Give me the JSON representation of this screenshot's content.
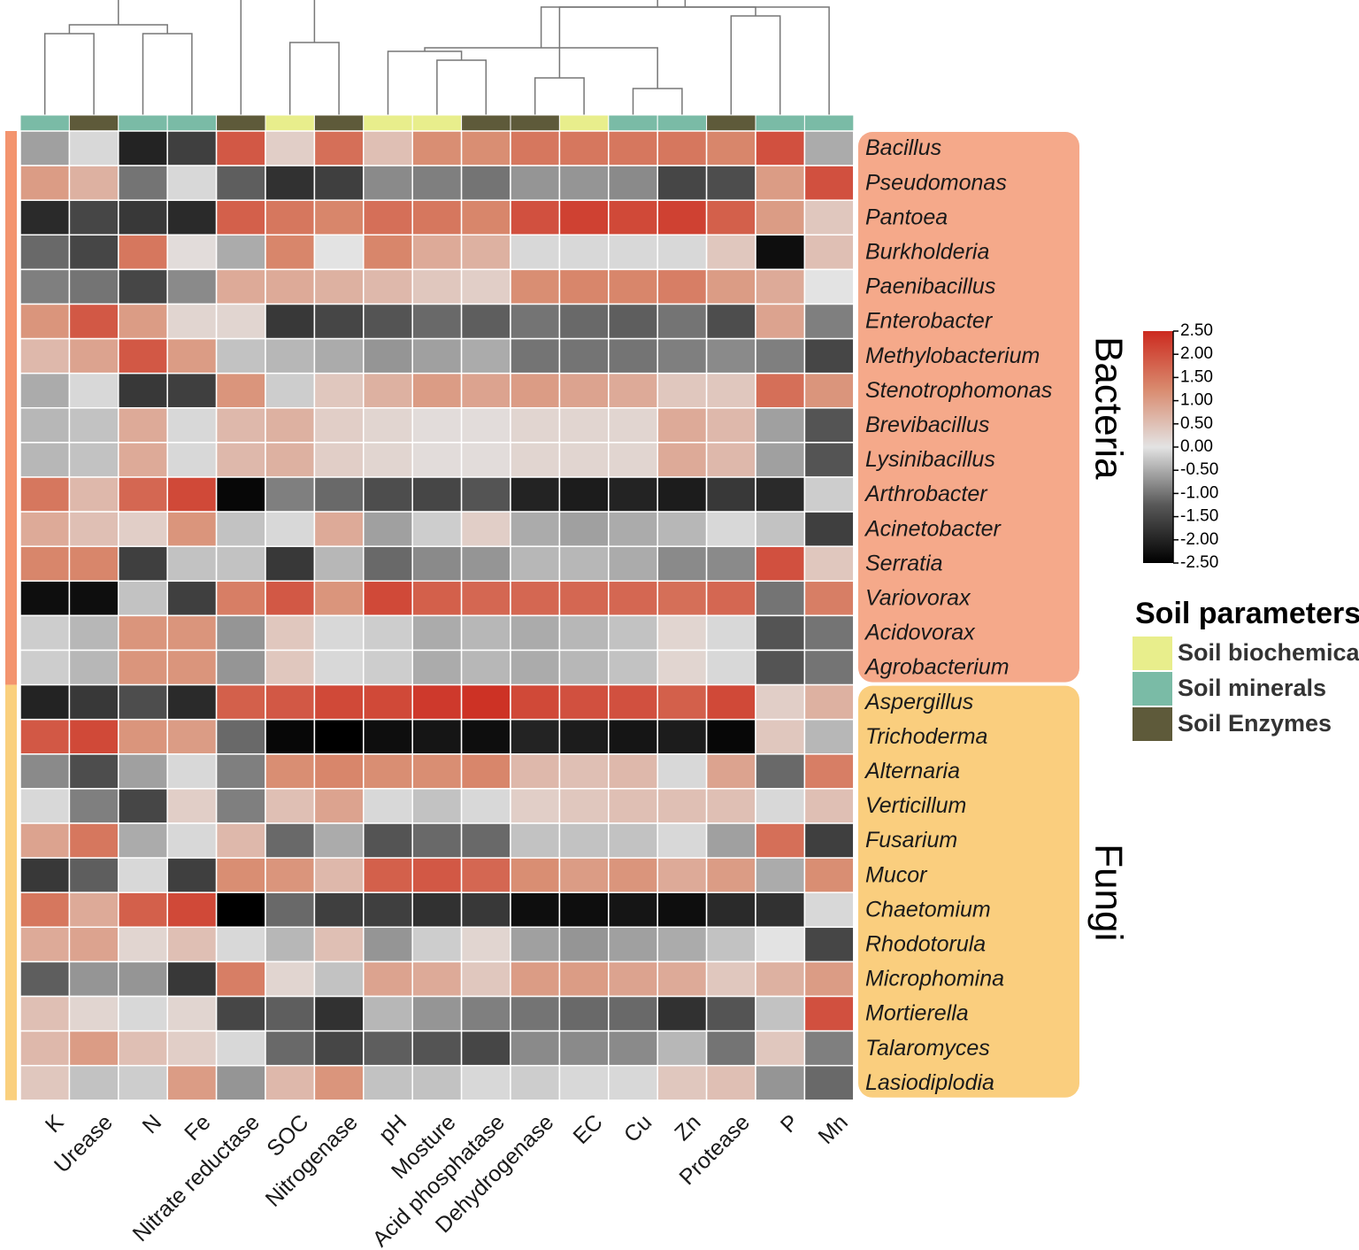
{
  "chart_data": {
    "type": "heatmap",
    "title": "",
    "columns": [
      "K",
      "Urease",
      "N",
      "Fe",
      "Nitrate reductase",
      "SOC",
      "Nitrogenase",
      "pH",
      "Mosture",
      "Acid phosphatase",
      "Dehydrogenase",
      "EC",
      "Cu",
      "Zn",
      "Protease",
      "P",
      "Mn"
    ],
    "column_categories": [
      "Soil minerals",
      "Soil Enzymes",
      "Soil minerals",
      "Soil minerals",
      "Soil Enzymes",
      "Soil biochemical",
      "Soil Enzymes",
      "Soil biochemical",
      "Soil biochemical",
      "Soil Enzymes",
      "Soil Enzymes",
      "Soil biochemical",
      "Soil minerals",
      "Soil minerals",
      "Soil Enzymes",
      "Soil minerals",
      "Soil minerals"
    ],
    "row_groups": [
      {
        "name": "Bacteria",
        "color": "#F5A98A",
        "bar_color": "#F3946E",
        "rows": [
          "Bacillus",
          "Pseudomonas",
          "Pantoea",
          "Burkholderia",
          "Paenibacillus",
          "Enterobacter",
          "Methylobacterium",
          "Stenotrophomonas",
          "Brevibacillus",
          "Lysinibacillus",
          "Arthrobacter",
          "Acinetobacter",
          "Serratia",
          "Variovorax",
          "Acidovorax",
          "Agrobacterium"
        ]
      },
      {
        "name": "Fungi",
        "color": "#FACE7E",
        "bar_color": "#FAD07E",
        "rows": [
          "Aspergillus",
          "Trichoderma",
          "Alternaria",
          "Verticillum",
          "Fusarium",
          "Mucor",
          "Chaetomium",
          "Rhodotorula",
          "Microphomina",
          "Mortierella",
          "Talaromyces",
          "Lasiodiplodia"
        ]
      }
    ],
    "values": [
      [
        -0.6,
        -0.1,
        -2.0,
        -1.6,
        1.9,
        0.3,
        1.6,
        0.5,
        1.2,
        1.2,
        1.5,
        1.5,
        1.5,
        1.5,
        1.3,
        2.0,
        -0.5
      ],
      [
        1.0,
        0.7,
        -1.0,
        -0.1,
        -1.2,
        -1.8,
        -1.6,
        -0.8,
        -0.9,
        -1.0,
        -0.7,
        -0.7,
        -0.8,
        -1.5,
        -1.4,
        1.0,
        2.0
      ],
      [
        -1.9,
        -1.5,
        -1.7,
        -1.9,
        1.8,
        1.5,
        1.3,
        1.6,
        1.5,
        1.3,
        2.0,
        2.2,
        2.1,
        2.2,
        1.8,
        1.0,
        0.4
      ],
      [
        -1.1,
        -1.5,
        1.5,
        0.1,
        -0.5,
        1.3,
        0.0,
        1.3,
        0.8,
        0.7,
        -0.1,
        -0.1,
        -0.1,
        -0.1,
        0.4,
        -2.3,
        0.5
      ],
      [
        -0.9,
        -1.0,
        -1.5,
        -0.8,
        0.8,
        0.8,
        0.7,
        0.6,
        0.4,
        0.3,
        1.2,
        1.3,
        1.3,
        1.4,
        1.0,
        0.8,
        0.0
      ],
      [
        1.1,
        1.9,
        1.0,
        0.2,
        0.2,
        -1.7,
        -1.5,
        -1.3,
        -1.1,
        -1.2,
        -1.0,
        -1.1,
        -1.2,
        -1.0,
        -1.4,
        0.9,
        -0.9
      ],
      [
        0.6,
        0.9,
        1.9,
        1.0,
        -0.3,
        -0.4,
        -0.5,
        -0.7,
        -0.6,
        -0.5,
        -1.0,
        -1.0,
        -1.0,
        -0.9,
        -0.8,
        -0.9,
        -1.5
      ],
      [
        -0.5,
        -0.1,
        -1.7,
        -1.6,
        1.1,
        -0.2,
        0.4,
        0.7,
        1.0,
        0.9,
        1.0,
        0.9,
        0.8,
        0.4,
        0.4,
        1.6,
        1.1
      ],
      [
        -0.4,
        -0.3,
        0.8,
        -0.1,
        0.6,
        0.7,
        0.3,
        0.2,
        0.1,
        0.1,
        0.2,
        0.2,
        0.2,
        0.8,
        0.6,
        -0.6,
        -1.3
      ],
      [
        -0.4,
        -0.3,
        0.8,
        -0.1,
        0.6,
        0.7,
        0.3,
        0.2,
        0.1,
        0.1,
        0.2,
        0.2,
        0.2,
        0.8,
        0.6,
        -0.6,
        -1.3
      ],
      [
        1.5,
        0.6,
        1.7,
        2.1,
        -2.4,
        -0.9,
        -1.1,
        -1.4,
        -1.5,
        -1.3,
        -2.0,
        -2.1,
        -2.0,
        -2.1,
        -1.7,
        -1.9,
        -0.2
      ],
      [
        0.8,
        0.5,
        0.3,
        1.1,
        -0.3,
        -0.1,
        0.8,
        -0.6,
        -0.2,
        0.3,
        -0.5,
        -0.6,
        -0.5,
        -0.4,
        -0.1,
        -0.3,
        -1.6
      ],
      [
        1.3,
        1.3,
        -1.6,
        -0.3,
        -0.3,
        -1.7,
        -0.4,
        -1.1,
        -0.8,
        -0.7,
        -0.4,
        -0.4,
        -0.5,
        -0.8,
        -0.8,
        2.0,
        0.4
      ],
      [
        -2.3,
        -2.3,
        -0.3,
        -1.6,
        1.4,
        1.9,
        1.1,
        2.1,
        1.8,
        1.7,
        1.7,
        1.7,
        1.7,
        1.6,
        1.7,
        -1.0,
        1.4
      ],
      [
        -0.2,
        -0.4,
        1.1,
        1.1,
        -0.7,
        0.4,
        -0.1,
        -0.2,
        -0.5,
        -0.4,
        -0.5,
        -0.4,
        -0.3,
        0.2,
        -0.1,
        -1.3,
        -1.0
      ],
      [
        -0.2,
        -0.4,
        1.1,
        1.1,
        -0.7,
        0.4,
        -0.1,
        -0.2,
        -0.5,
        -0.4,
        -0.5,
        -0.4,
        -0.3,
        0.2,
        -0.1,
        -1.3,
        -1.0
      ],
      [
        -2.0,
        -1.7,
        -1.4,
        -1.9,
        1.8,
        1.9,
        2.1,
        2.1,
        2.3,
        2.4,
        2.1,
        2.0,
        2.0,
        1.8,
        2.1,
        0.3,
        0.7
      ],
      [
        1.9,
        2.1,
        1.1,
        1.0,
        -1.1,
        -2.4,
        -2.5,
        -2.3,
        -2.2,
        -2.3,
        -2.0,
        -2.1,
        -2.2,
        -2.1,
        -2.4,
        0.4,
        -0.4
      ],
      [
        -0.8,
        -1.4,
        -0.6,
        -0.1,
        -0.9,
        1.2,
        1.3,
        1.2,
        1.2,
        1.3,
        0.6,
        0.5,
        0.6,
        -0.1,
        0.9,
        -1.1,
        1.4
      ],
      [
        -0.1,
        -0.9,
        -1.5,
        0.3,
        -0.9,
        0.5,
        0.9,
        -0.1,
        -0.3,
        -0.1,
        0.3,
        0.4,
        0.5,
        0.5,
        0.5,
        -0.1,
        0.5
      ],
      [
        0.9,
        1.5,
        -0.5,
        -0.1,
        0.6,
        -1.1,
        -0.5,
        -1.3,
        -1.1,
        -1.1,
        -0.3,
        -0.3,
        -0.3,
        -0.1,
        -0.6,
        1.6,
        -1.6
      ],
      [
        -1.7,
        -1.2,
        -0.1,
        -1.6,
        1.2,
        1.1,
        0.6,
        1.8,
        1.9,
        1.7,
        1.2,
        1.0,
        1.1,
        0.8,
        1.0,
        -0.5,
        1.2
      ],
      [
        1.5,
        0.8,
        1.8,
        2.1,
        -2.5,
        -1.1,
        -1.6,
        -1.6,
        -1.8,
        -1.7,
        -2.3,
        -2.3,
        -2.2,
        -2.3,
        -1.9,
        -1.8,
        -0.1
      ],
      [
        0.8,
        0.9,
        0.2,
        0.5,
        -0.1,
        -0.4,
        0.5,
        -0.7,
        -0.2,
        0.2,
        -0.6,
        -0.7,
        -0.6,
        -0.5,
        -0.3,
        0.0,
        -1.5
      ],
      [
        -1.2,
        -0.7,
        -0.7,
        -1.7,
        1.4,
        0.2,
        -0.3,
        0.9,
        0.8,
        0.4,
        1.0,
        1.0,
        0.9,
        0.8,
        0.4,
        0.7,
        1.0
      ],
      [
        0.5,
        0.2,
        -0.1,
        0.2,
        -1.5,
        -1.2,
        -1.8,
        -0.4,
        -0.7,
        -0.9,
        -1.0,
        -1.1,
        -1.1,
        -1.8,
        -1.3,
        -0.3,
        2.0
      ],
      [
        0.6,
        1.0,
        0.5,
        0.3,
        -0.1,
        -1.1,
        -1.5,
        -1.2,
        -1.3,
        -1.5,
        -0.8,
        -0.8,
        -0.8,
        -0.4,
        -1.0,
        0.4,
        -0.9
      ],
      [
        0.4,
        -0.3,
        -0.2,
        1.0,
        -0.7,
        0.6,
        1.1,
        -0.3,
        -0.3,
        -0.1,
        -0.2,
        -0.1,
        -0.1,
        0.4,
        0.5,
        -0.7,
        -1.1
      ]
    ],
    "colorbar": {
      "min": -2.5,
      "max": 2.5,
      "ticks": [
        "2.50",
        "2.00",
        "1.50",
        "1.00",
        "0.50",
        "0.00",
        "-0.50",
        "-1.00",
        "-1.50",
        "-2.00",
        "-2.50"
      ],
      "stops": [
        {
          "v": -2.5,
          "c": "#000000"
        },
        {
          "v": -1.25,
          "c": "#585858"
        },
        {
          "v": 0.0,
          "c": "#e3e3e3"
        },
        {
          "v": 1.25,
          "c": "#d98a6e"
        },
        {
          "v": 2.5,
          "c": "#cc2a1f"
        }
      ]
    },
    "legend": {
      "title": "Soil parameters",
      "items": [
        {
          "label": "Soil biochemical",
          "color": "#E8EE8C"
        },
        {
          "label": "Soil minerals",
          "color": "#7ABBA6"
        },
        {
          "label": "Soil Enzymes",
          "color": "#5E5A3A"
        }
      ]
    },
    "dendrogram": {
      "leaves": 17,
      "merges": [
        [
          0,
          1,
          60
        ],
        [
          2,
          3,
          40
        ],
        [
          17,
          18,
          95
        ],
        [
          5,
          6,
          55
        ],
        [
          8,
          9,
          65
        ],
        [
          10,
          11,
          90
        ],
        [
          12,
          13,
          60
        ],
        [
          14,
          15,
          100
        ],
        [
          7,
          21,
          15
        ],
        [
          22,
          24,
          -5
        ],
        [
          23,
          25,
          15
        ],
        [
          20,
          26,
          25
        ],
        [
          16,
          27,
          110
        ],
        [
          4,
          28,
          5
        ],
        [
          19,
          29,
          60
        ],
        [
          30,
          31,
          -20
        ]
      ]
    }
  }
}
